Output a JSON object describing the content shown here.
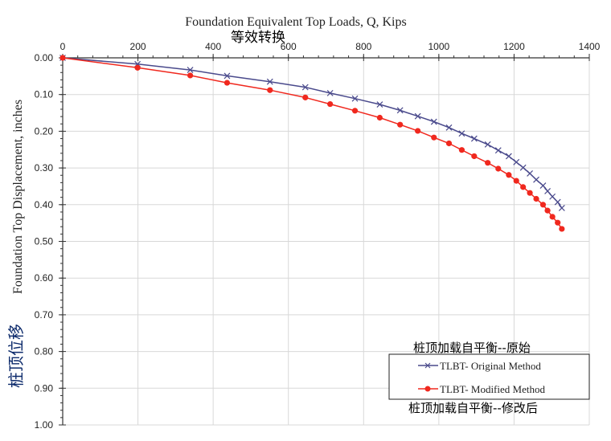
{
  "chart_data": {
    "type": "line",
    "title": "Foundation Equivalent Top Loads, Q, Kips",
    "title_annotation": "等效转换",
    "xlabel": "Foundation Equivalent Top Loads, Q, Kips",
    "ylabel": "Foundation Top Displacement, inches",
    "ylabel_annotation": "桩顶位移",
    "xlim": [
      0,
      1400
    ],
    "ylim": [
      0,
      1.0
    ],
    "y_inverted": true,
    "x_axis_position": "top",
    "grid": true,
    "x_ticks": [
      "0",
      "200",
      "400",
      "600",
      "800",
      "1000",
      "1200",
      "1400"
    ],
    "y_ticks": [
      "0.00",
      "0.10",
      "0.20",
      "0.30",
      "0.40",
      "0.50",
      "0.60",
      "0.70",
      "0.80",
      "0.90",
      "1.00"
    ],
    "legend_placement": "bottom-right",
    "x": [
      0,
      199,
      339,
      437,
      551,
      645,
      711,
      777,
      843,
      897,
      944,
      987,
      1027,
      1061,
      1094,
      1130,
      1158,
      1186,
      1206,
      1224,
      1242,
      1259,
      1277,
      1289,
      1302,
      1316,
      1327
    ],
    "series": [
      {
        "name": "TLBT- Original Method",
        "annotation": "桩顶加载自平衡--原始",
        "color": "#4a4a8c",
        "marker": "x",
        "values": [
          0,
          0.017,
          0.033,
          0.049,
          0.065,
          0.08,
          0.096,
          0.111,
          0.127,
          0.143,
          0.159,
          0.174,
          0.19,
          0.206,
          0.22,
          0.236,
          0.252,
          0.268,
          0.284,
          0.299,
          0.315,
          0.332,
          0.348,
          0.363,
          0.378,
          0.393,
          0.409
        ]
      },
      {
        "name": "TLBT- Modified Method",
        "annotation": "桩顶加载自平衡--修改后",
        "color": "#f0281e",
        "marker": "circle",
        "values": [
          0,
          0.027,
          0.048,
          0.068,
          0.088,
          0.108,
          0.126,
          0.144,
          0.163,
          0.182,
          0.199,
          0.217,
          0.233,
          0.251,
          0.268,
          0.286,
          0.302,
          0.319,
          0.335,
          0.352,
          0.368,
          0.384,
          0.4,
          0.416,
          0.433,
          0.449,
          0.466
        ]
      }
    ]
  }
}
